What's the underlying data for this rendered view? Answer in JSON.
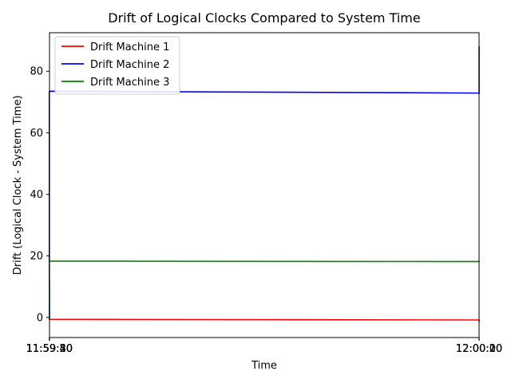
{
  "chart_data": {
    "type": "line",
    "title": "Drift of Logical Clocks Compared to System Time",
    "xlabel": "Time",
    "ylabel": "Drift (Logical Clock - System Time)",
    "x_unit": "time",
    "xlim": [
      "11:59:17.1",
      "12:00:20.9"
    ],
    "ylim": [
      -6.5,
      92.5
    ],
    "xticks": [
      "11:59:20",
      "11:59:30",
      "11:59:40",
      "11:59:50",
      "12:00:00",
      "12:00:10",
      "12:00:20"
    ],
    "yticks": [
      0,
      20,
      40,
      60,
      80
    ],
    "grid": false,
    "legend_position": "top-left",
    "series": [
      {
        "name": "Drift Machine 1",
        "color": "#ff0000",
        "points": [
          [
            "11:59:20",
            0.5
          ],
          [
            "11:59:25",
            0.3
          ],
          [
            "11:59:30",
            0.1
          ],
          [
            "11:59:35",
            -0.1
          ],
          [
            "11:59:40",
            -0.2
          ],
          [
            "11:59:44",
            -0.3
          ],
          [
            "11:59:50",
            -0.4
          ],
          [
            "11:59:55",
            -0.6
          ],
          [
            "12:00:00",
            -0.8
          ],
          [
            "12:00:05",
            -1.0
          ],
          [
            "12:00:10",
            -1.1
          ],
          [
            "12:00:15",
            -1.3
          ],
          [
            "12:00:18",
            -1.4
          ]
        ]
      },
      {
        "name": "Drift Machine 2",
        "color": "#0000ff",
        "points": [
          [
            "11:59:20",
            0.5
          ],
          [
            "11:59:24",
            0.3
          ],
          [
            "11:59:25",
            4.5
          ],
          [
            "11:59:30",
            4.3
          ],
          [
            "11:59:32",
            4.3
          ],
          [
            "11:59:32.1",
            12.0
          ],
          [
            "11:59:40",
            11.8
          ],
          [
            "11:59:50",
            11.8
          ],
          [
            "11:59:51",
            59.5
          ],
          [
            "11:59:55",
            59.2
          ],
          [
            "11:59:56",
            70.0
          ],
          [
            "11:59:58",
            69.7
          ],
          [
            "11:59:59",
            73.5
          ],
          [
            "12:00:05",
            72.9
          ],
          [
            "12:00:12",
            72.7
          ],
          [
            "12:00:12.1",
            88.0
          ],
          [
            "12:00:18",
            87.8
          ]
        ]
      },
      {
        "name": "Drift Machine 3",
        "color": "#008000",
        "points": [
          [
            "11:59:20",
            0.5
          ],
          [
            "11:59:30",
            0.0
          ],
          [
            "11:59:40",
            -0.4
          ],
          [
            "11:59:44",
            -0.6
          ],
          [
            "11:59:45",
            11.8
          ],
          [
            "11:59:50",
            11.6
          ],
          [
            "11:59:54",
            11.2
          ],
          [
            "11:59:54.1",
            16.0
          ],
          [
            "11:59:57",
            15.5
          ],
          [
            "11:59:58",
            17.5
          ],
          [
            "11:59:59",
            18.3
          ],
          [
            "12:00:05",
            18.2
          ],
          [
            "12:00:10",
            18.1
          ],
          [
            "12:00:18",
            17.9
          ]
        ]
      }
    ]
  }
}
